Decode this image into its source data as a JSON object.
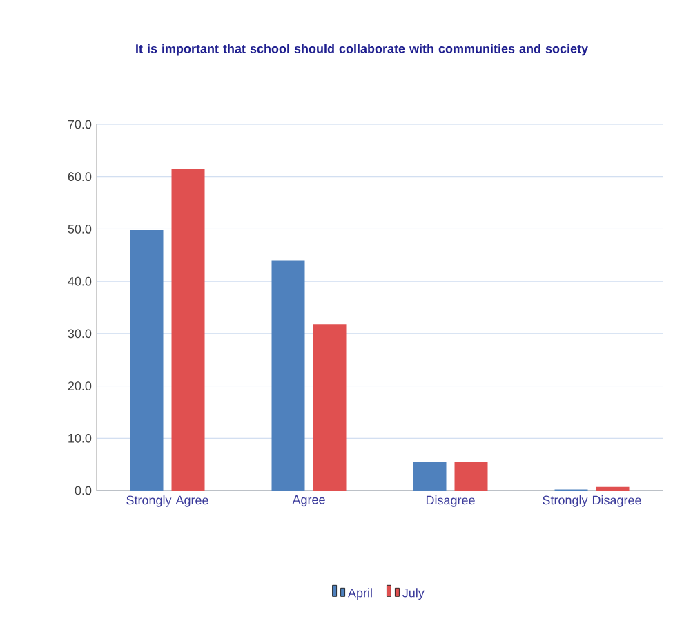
{
  "chart_data": {
    "type": "bar",
    "title": "It is important that school should collaborate with communities and society",
    "categories": [
      "Strongly Agree",
      "Agree",
      "Disagree",
      "Strongly Disagree"
    ],
    "series": [
      {
        "name": "April",
        "color": "#4f81bd",
        "values": [
          49.8,
          43.9,
          5.4,
          0.2
        ]
      },
      {
        "name": "July",
        "color": "#e05050",
        "values": [
          61.5,
          31.8,
          5.5,
          0.7
        ]
      }
    ],
    "ylim": [
      0,
      70
    ],
    "yticks": [
      {
        "value": 0,
        "label": "0.0"
      },
      {
        "value": 10,
        "label": "10.0"
      },
      {
        "value": 20,
        "label": "20.0"
      },
      {
        "value": 30,
        "label": "30.0"
      },
      {
        "value": 40,
        "label": "40.0"
      },
      {
        "value": 50,
        "label": "50.0"
      },
      {
        "value": 60,
        "label": "60.0"
      },
      {
        "value": 70,
        "label": "70.0"
      }
    ],
    "grid": "y",
    "legend": "bottom"
  }
}
